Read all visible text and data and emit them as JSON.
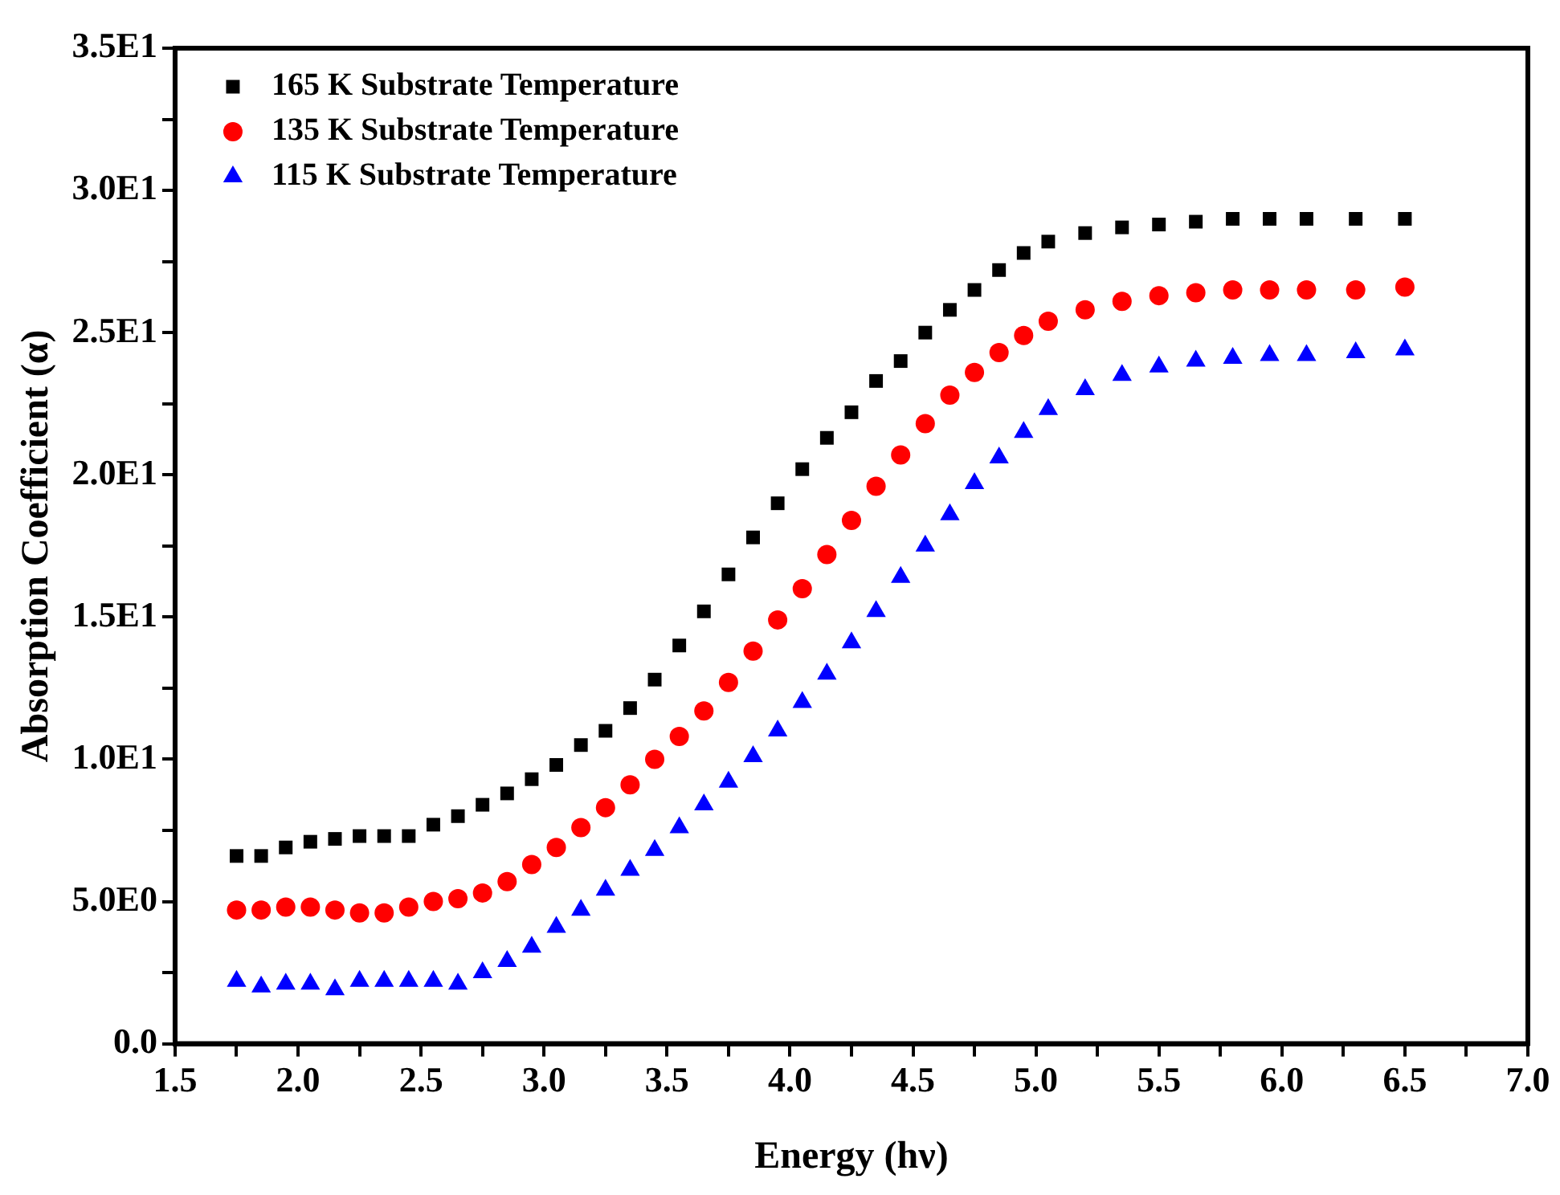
{
  "chart_data": {
    "type": "scatter",
    "xlabel": "Energy (hν)",
    "ylabel": "Absorption Coefficient (α)",
    "x": [
      1.75,
      1.85,
      1.95,
      2.05,
      2.15,
      2.25,
      2.35,
      2.45,
      2.55,
      2.65,
      2.75,
      2.85,
      2.95,
      3.05,
      3.15,
      3.25,
      3.35,
      3.45,
      3.55,
      3.65,
      3.75,
      3.85,
      3.95,
      4.05,
      4.15,
      4.25,
      4.35,
      4.45,
      4.55,
      4.65,
      4.75,
      4.85,
      4.95,
      5.05,
      5.2,
      5.35,
      5.5,
      5.65,
      5.8,
      5.95,
      6.1,
      6.3,
      6.5
    ],
    "series": [
      {
        "name": "165 K Substrate Temperature",
        "color": "#000000",
        "marker": "square",
        "values": [
          6.6,
          6.6,
          6.9,
          7.1,
          7.2,
          7.3,
          7.3,
          7.3,
          7.7,
          8.0,
          8.4,
          8.8,
          9.3,
          9.8,
          10.5,
          11.0,
          11.8,
          12.8,
          14.0,
          15.2,
          16.5,
          17.8,
          19.0,
          20.2,
          21.3,
          22.2,
          23.3,
          24.0,
          25.0,
          25.8,
          26.5,
          27.2,
          27.8,
          28.2,
          28.5,
          28.7,
          28.8,
          28.9,
          29.0,
          29.0,
          29.0,
          29.0,
          29.0
        ]
      },
      {
        "name": "135 K Substrate Temperature",
        "color": "#ff0000",
        "marker": "circle",
        "values": [
          4.7,
          4.7,
          4.8,
          4.8,
          4.7,
          4.6,
          4.6,
          4.8,
          5.0,
          5.1,
          5.3,
          5.7,
          6.3,
          6.9,
          7.6,
          8.3,
          9.1,
          10.0,
          10.8,
          11.7,
          12.7,
          13.8,
          14.9,
          16.0,
          17.2,
          18.4,
          19.6,
          20.7,
          21.8,
          22.8,
          23.6,
          24.3,
          24.9,
          25.4,
          25.8,
          26.1,
          26.3,
          26.4,
          26.5,
          26.5,
          26.5,
          26.5,
          26.6
        ]
      },
      {
        "name": "115 K Substrate Temperature",
        "color": "#0000ff",
        "marker": "triangle",
        "values": [
          2.2,
          2.0,
          2.1,
          2.1,
          1.9,
          2.2,
          2.2,
          2.2,
          2.2,
          2.1,
          2.5,
          2.9,
          3.4,
          4.1,
          4.7,
          5.4,
          6.1,
          6.8,
          7.6,
          8.4,
          9.2,
          10.1,
          11.0,
          12.0,
          13.0,
          14.1,
          15.2,
          16.4,
          17.5,
          18.6,
          19.7,
          20.6,
          21.5,
          22.3,
          23.0,
          23.5,
          23.8,
          24.0,
          24.1,
          24.2,
          24.2,
          24.3,
          24.4
        ]
      }
    ],
    "xlim": [
      1.5,
      7.0
    ],
    "xticks": [
      1.5,
      {
        "value": 1.75,
        "label": null
      },
      {
        "value": 2,
        "label": "2.0"
      },
      {
        "value": 2.25,
        "label": null
      },
      2.5,
      {
        "value": 2.75,
        "label": null
      },
      {
        "value": 3,
        "label": "3.0"
      },
      {
        "value": 3.25,
        "label": null
      },
      3.5,
      {
        "value": 3.75,
        "label": null
      },
      {
        "value": 4,
        "label": "4.0"
      },
      {
        "value": 4.25,
        "label": null
      },
      4.5,
      {
        "value": 4.75,
        "label": null
      },
      {
        "value": 5,
        "label": "5.0"
      },
      {
        "value": 5.25,
        "label": null
      },
      5.5,
      {
        "value": 5.75,
        "label": null
      },
      {
        "value": 6,
        "label": "6.0"
      },
      {
        "value": 6.25,
        "label": null
      },
      6.5,
      {
        "value": 6.75,
        "label": null
      },
      {
        "value": 7,
        "label": "7.0"
      }
    ],
    "ylim": [
      0,
      35
    ],
    "yticks": [
      {
        "value": 0,
        "label": "0.0"
      },
      {
        "value": 2.5,
        "label": null
      },
      {
        "value": 5,
        "label": "5.0E0"
      },
      {
        "value": 7.5,
        "label": null
      },
      {
        "value": 10,
        "label": "1.0E1"
      },
      {
        "value": 12.5,
        "label": null
      },
      {
        "value": 15,
        "label": "1.5E1"
      },
      {
        "value": 17.5,
        "label": null
      },
      {
        "value": 20,
        "label": "2.0E1"
      },
      {
        "value": 22.5,
        "label": null
      },
      {
        "value": 25,
        "label": "2.5E1"
      },
      {
        "value": 27.5,
        "label": null
      },
      {
        "value": 30,
        "label": "3.0E1"
      },
      {
        "value": 32.5,
        "label": null
      },
      {
        "value": 35,
        "label": "3.5E1"
      }
    ],
    "grid": false,
    "legend": "top left"
  }
}
